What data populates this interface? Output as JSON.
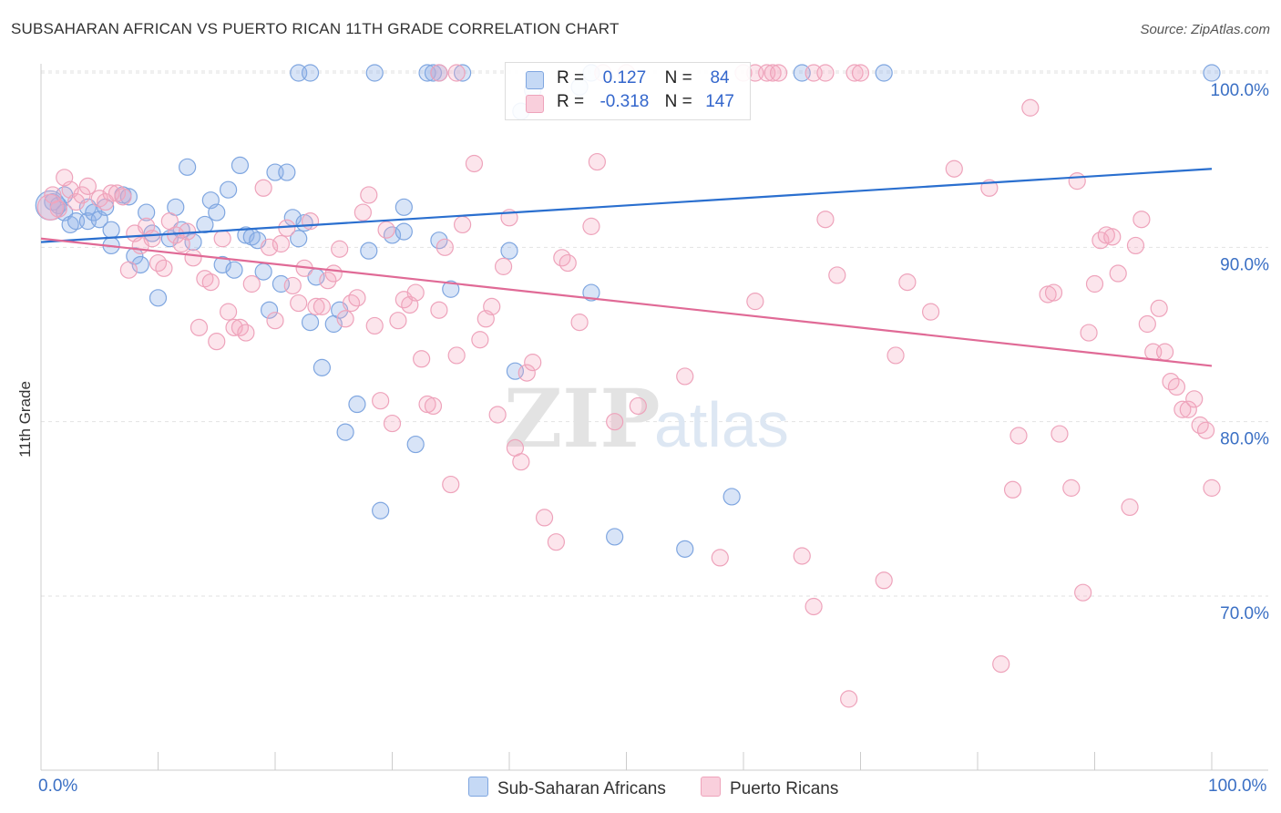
{
  "chart_data": {
    "type": "scatter",
    "title": "SUBSAHARAN AFRICAN VS PUERTO RICAN 11TH GRADE CORRELATION CHART",
    "source": "Source: ZipAtlas.com",
    "xlabel": "",
    "ylabel": "11th Grade",
    "xlim": [
      0,
      100
    ],
    "ylim": [
      61,
      102
    ],
    "x_tick_labels": [
      "0.0%",
      "100.0%"
    ],
    "y_ticks": [
      70,
      80,
      90,
      100
    ],
    "y_tick_labels": [
      "70.0%",
      "80.0%",
      "90.0%",
      "100.0%"
    ],
    "legend_position": "top-center",
    "watermark": "ZIPatlas",
    "series": [
      {
        "name": "Sub-Saharan Africans",
        "color": "#8fb3e8",
        "line_color": "#2a6fcf",
        "R": "0.127",
        "N": "84",
        "trend": [
          [
            0,
            90.3
          ],
          [
            100,
            94.5
          ]
        ],
        "points": [
          [
            22,
            100
          ],
          [
            23,
            100
          ],
          [
            28.5,
            100
          ],
          [
            33,
            100
          ],
          [
            33.5,
            100
          ],
          [
            34,
            100
          ],
          [
            36,
            100
          ],
          [
            47,
            100
          ],
          [
            65,
            100
          ],
          [
            72,
            100
          ],
          [
            100,
            100
          ],
          [
            42,
            99
          ],
          [
            46,
            99.2
          ],
          [
            41,
            97.8
          ],
          [
            1,
            92.6
          ],
          [
            1.5,
            92.4
          ],
          [
            2,
            93
          ],
          [
            2,
            92
          ],
          [
            2.5,
            91.3
          ],
          [
            3,
            91.5
          ],
          [
            4,
            92.3
          ],
          [
            4,
            91.5
          ],
          [
            4.5,
            92
          ],
          [
            5,
            91.6
          ],
          [
            5.5,
            92.3
          ],
          [
            6,
            91
          ],
          [
            6,
            90.1
          ],
          [
            7,
            93
          ],
          [
            7.5,
            92.9
          ],
          [
            8,
            89.5
          ],
          [
            8.5,
            89
          ],
          [
            9,
            92
          ],
          [
            9.5,
            90.8
          ],
          [
            10,
            87.1
          ],
          [
            11,
            90.5
          ],
          [
            11.5,
            92.3
          ],
          [
            12,
            91
          ],
          [
            12.5,
            94.6
          ],
          [
            13,
            90.3
          ],
          [
            14,
            91.3
          ],
          [
            14.5,
            92.7
          ],
          [
            15,
            92
          ],
          [
            15.5,
            89
          ],
          [
            16,
            93.3
          ],
          [
            16.5,
            88.7
          ],
          [
            17,
            94.7
          ],
          [
            17.5,
            90.7
          ],
          [
            18,
            90.6
          ],
          [
            18.5,
            90.4
          ],
          [
            19,
            88.6
          ],
          [
            19.5,
            86.4
          ],
          [
            20,
            94.3
          ],
          [
            20.5,
            87.9
          ],
          [
            21,
            94.3
          ],
          [
            21.5,
            91.7
          ],
          [
            22,
            90.5
          ],
          [
            22.5,
            91.4
          ],
          [
            23,
            85.7
          ],
          [
            23.5,
            88.3
          ],
          [
            24,
            83.1
          ],
          [
            25,
            85.6
          ],
          [
            25.5,
            86.4
          ],
          [
            26,
            79.4
          ],
          [
            27,
            81
          ],
          [
            28,
            89.8
          ],
          [
            29,
            74.9
          ],
          [
            30,
            90.7
          ],
          [
            31,
            92.3
          ],
          [
            31,
            90.9
          ],
          [
            32,
            78.7
          ],
          [
            34,
            90.4
          ],
          [
            35,
            87.6
          ],
          [
            40,
            89.8
          ],
          [
            40.5,
            82.9
          ],
          [
            47,
            87.4
          ],
          [
            49,
            73.4
          ],
          [
            55,
            72.7
          ],
          [
            59,
            75.7
          ]
        ]
      },
      {
        "name": "Puerto Ricans",
        "color": "#f4a9c0",
        "line_color": "#e06a96",
        "R": "-0.318",
        "N": "147",
        "trend": [
          [
            0,
            90.5
          ],
          [
            100,
            83.2
          ]
        ],
        "points": [
          [
            34,
            100
          ],
          [
            35.5,
            100
          ],
          [
            48,
            100
          ],
          [
            50,
            100
          ],
          [
            60,
            100
          ],
          [
            61,
            100
          ],
          [
            62,
            100
          ],
          [
            62.5,
            100
          ],
          [
            63,
            100
          ],
          [
            66,
            100
          ],
          [
            67,
            100
          ],
          [
            69.5,
            100
          ],
          [
            70,
            100
          ],
          [
            84.5,
            98
          ],
          [
            1,
            93
          ],
          [
            1.5,
            92.2
          ],
          [
            2,
            94
          ],
          [
            2.5,
            93.3
          ],
          [
            3,
            92.6
          ],
          [
            3.5,
            93
          ],
          [
            4,
            93.5
          ],
          [
            5,
            92.8
          ],
          [
            5.5,
            92.6
          ],
          [
            6,
            93.1
          ],
          [
            6.5,
            93.1
          ],
          [
            7,
            92.9
          ],
          [
            7.5,
            88.7
          ],
          [
            8,
            90.8
          ],
          [
            8.5,
            90.1
          ],
          [
            9,
            91.2
          ],
          [
            9.5,
            90.5
          ],
          [
            10,
            89.1
          ],
          [
            10.5,
            88.8
          ],
          [
            11,
            91.5
          ],
          [
            11.5,
            90.7
          ],
          [
            12,
            90.2
          ],
          [
            12.5,
            90.9
          ],
          [
            13,
            89.4
          ],
          [
            13.5,
            85.4
          ],
          [
            14,
            88.2
          ],
          [
            14.5,
            88
          ],
          [
            15,
            84.6
          ],
          [
            15.5,
            90.5
          ],
          [
            16,
            86.3
          ],
          [
            16.5,
            85.4
          ],
          [
            17,
            85.4
          ],
          [
            17.5,
            85.1
          ],
          [
            18,
            87.9
          ],
          [
            19,
            93.4
          ],
          [
            19.5,
            90
          ],
          [
            20,
            85.8
          ],
          [
            20.5,
            90.2
          ],
          [
            21,
            91.1
          ],
          [
            21.5,
            87.8
          ],
          [
            22,
            86.8
          ],
          [
            22.5,
            88.8
          ],
          [
            23,
            91.5
          ],
          [
            23.5,
            86.6
          ],
          [
            24,
            86.6
          ],
          [
            24.5,
            88.1
          ],
          [
            25,
            88.5
          ],
          [
            25.5,
            89.9
          ],
          [
            26,
            85.9
          ],
          [
            26.5,
            86.8
          ],
          [
            27,
            87.1
          ],
          [
            27.5,
            92
          ],
          [
            28,
            93
          ],
          [
            28.5,
            85.5
          ],
          [
            29,
            81.2
          ],
          [
            29.5,
            91
          ],
          [
            30,
            79.9
          ],
          [
            30.5,
            85.8
          ],
          [
            31,
            87
          ],
          [
            31.5,
            86.7
          ],
          [
            32,
            87.4
          ],
          [
            32.5,
            83.6
          ],
          [
            33,
            81
          ],
          [
            33.5,
            80.9
          ],
          [
            34,
            86.4
          ],
          [
            34.5,
            90
          ],
          [
            35,
            76.4
          ],
          [
            35.5,
            83.8
          ],
          [
            36,
            91.3
          ],
          [
            37,
            94.8
          ],
          [
            37.5,
            84.7
          ],
          [
            38,
            85.9
          ],
          [
            38.5,
            86.6
          ],
          [
            39,
            80.4
          ],
          [
            39.5,
            88.9
          ],
          [
            40,
            91.7
          ],
          [
            40.5,
            78.5
          ],
          [
            41,
            77.7
          ],
          [
            41.5,
            82.8
          ],
          [
            42,
            83.4
          ],
          [
            43,
            74.5
          ],
          [
            44,
            73.1
          ],
          [
            44.5,
            89.4
          ],
          [
            45,
            89.1
          ],
          [
            46,
            85.7
          ],
          [
            47,
            91.2
          ],
          [
            47.5,
            94.9
          ],
          [
            49,
            80
          ],
          [
            51,
            80.9
          ],
          [
            55,
            82.6
          ],
          [
            58,
            72.2
          ],
          [
            61,
            86.9
          ],
          [
            65,
            72.3
          ],
          [
            66,
            69.4
          ],
          [
            67,
            91.6
          ],
          [
            68,
            88.4
          ],
          [
            69,
            64.1
          ],
          [
            72,
            70.9
          ],
          [
            73,
            83.8
          ],
          [
            74,
            88
          ],
          [
            76,
            86.3
          ],
          [
            78,
            94.5
          ],
          [
            81,
            93.4
          ],
          [
            82,
            66.1
          ],
          [
            83,
            76.1
          ],
          [
            83.5,
            79.2
          ],
          [
            86,
            87.3
          ],
          [
            86.5,
            87.4
          ],
          [
            87,
            79.3
          ],
          [
            88,
            76.2
          ],
          [
            88.5,
            93.8
          ],
          [
            89,
            70.2
          ],
          [
            89.5,
            85.1
          ],
          [
            90,
            87.9
          ],
          [
            90.5,
            90.4
          ],
          [
            91,
            90.7
          ],
          [
            91.5,
            90.6
          ],
          [
            92,
            88.5
          ],
          [
            93,
            75.1
          ],
          [
            93.5,
            90.1
          ],
          [
            94,
            91.6
          ],
          [
            94.5,
            85.6
          ],
          [
            95,
            84
          ],
          [
            95.5,
            86.5
          ],
          [
            96,
            84
          ],
          [
            96.5,
            82.3
          ],
          [
            97,
            82
          ],
          [
            97.5,
            80.7
          ],
          [
            98,
            80.7
          ],
          [
            98.5,
            81.3
          ],
          [
            99,
            79.8
          ],
          [
            99.5,
            79.5
          ],
          [
            100,
            76.2
          ]
        ]
      }
    ]
  },
  "legend": {
    "r_label": "R =",
    "n_label": "N =",
    "row1_r": "0.127",
    "row1_n": "84",
    "row2_r": "-0.318",
    "row2_n": "147"
  },
  "bottom_legend": {
    "item1": "Sub-Saharan Africans",
    "item2": "Puerto Ricans"
  }
}
